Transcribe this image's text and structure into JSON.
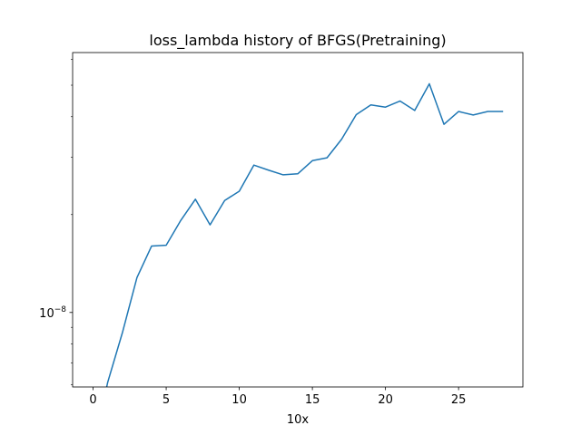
{
  "chart_data": {
    "type": "line",
    "title": "loss_lambda history of BFGS(Pretraining)",
    "xlabel": "10x",
    "ylabel": "",
    "y_scale": "log",
    "xlim": [
      -1.4,
      29.4
    ],
    "ylim": [
      5.9e-09,
      6.3e-08
    ],
    "grid": false,
    "x_ticks": [
      0,
      5,
      10,
      15,
      20,
      25
    ],
    "x_tick_labels": [
      "0",
      "5",
      "10",
      "15",
      "20",
      "25"
    ],
    "y_major_ticks": [
      1e-08
    ],
    "y_major_tick_labels_base": "10",
    "y_major_tick_labels_exp": "−8",
    "y_minor_ticks": [
      6e-09,
      7e-09,
      8e-09,
      9e-09,
      2e-08,
      3e-08,
      4e-08,
      5e-08,
      6e-08
    ],
    "series": [
      {
        "color": "#1f77b4",
        "x": [
          0,
          1,
          2,
          3,
          4,
          5,
          6,
          7,
          8,
          9,
          10,
          11,
          12,
          13,
          14,
          15,
          16,
          17,
          18,
          19,
          20,
          21,
          22,
          23,
          24,
          25,
          26,
          27,
          28
        ],
        "y": [
          3.8e-09,
          6.1e-09,
          8.65e-09,
          1.28e-08,
          1.6e-08,
          1.61e-08,
          1.92e-08,
          2.23e-08,
          1.86e-08,
          2.21e-08,
          2.36e-08,
          2.84e-08,
          2.74e-08,
          2.65e-08,
          2.67e-08,
          2.93e-08,
          2.99e-08,
          3.41e-08,
          4.06e-08,
          4.35e-08,
          4.28e-08,
          4.47e-08,
          4.18e-08,
          5.05e-08,
          3.79e-08,
          4.15e-08,
          4.05e-08,
          4.15e-08,
          4.15e-08
        ]
      }
    ]
  }
}
